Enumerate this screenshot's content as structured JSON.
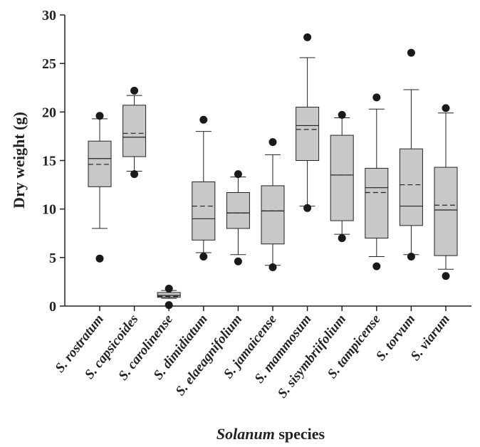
{
  "chart_data": {
    "type": "box",
    "xlabel_prefix": "Solanum",
    "xlabel_suffix": " species",
    "ylabel": "Dry weight (g)",
    "ylim": [
      0,
      30
    ],
    "yticks": [
      0,
      5,
      10,
      15,
      20,
      25,
      30
    ],
    "categories": [
      "S. rostratum",
      "S. capsicoides",
      "S. carolinense",
      "S. dimidiatum",
      "S. elaeagnifolium",
      "S. jamaicense",
      "S. mammosum",
      "S. sisymbriifolium",
      "S. tampicense",
      "S. torvum",
      "S. viarum"
    ],
    "boxes": [
      {
        "whisker_low": 8.0,
        "q1": 12.3,
        "median": 15.2,
        "mean": 14.6,
        "q3": 17.0,
        "whisker_high": 19.3,
        "outliers": [
          4.9,
          19.6
        ]
      },
      {
        "whisker_low": 13.9,
        "q1": 15.4,
        "median": 17.4,
        "mean": 17.8,
        "q3": 20.7,
        "whisker_high": 21.7,
        "outliers": [
          13.6,
          22.2
        ]
      },
      {
        "whisker_low": 0.8,
        "q1": 0.9,
        "median": 1.1,
        "mean": 1.0,
        "q3": 1.4,
        "whisker_high": 1.6,
        "outliers": [
          0.1,
          1.8
        ]
      },
      {
        "whisker_low": 5.5,
        "q1": 6.8,
        "median": 9.0,
        "mean": 10.3,
        "q3": 12.8,
        "whisker_high": 18.0,
        "outliers": [
          5.1,
          19.2
        ]
      },
      {
        "whisker_low": 5.3,
        "q1": 8.0,
        "median": 9.6,
        "mean": 9.6,
        "q3": 11.7,
        "whisker_high": 13.3,
        "outliers": [
          4.6,
          13.6
        ]
      },
      {
        "whisker_low": 4.2,
        "q1": 6.4,
        "median": 9.8,
        "mean": 9.8,
        "q3": 12.4,
        "whisker_high": 15.6,
        "outliers": [
          4.0,
          16.9
        ]
      },
      {
        "whisker_low": 10.3,
        "q1": 15.0,
        "median": 18.6,
        "mean": 18.2,
        "q3": 20.5,
        "whisker_high": 25.6,
        "outliers": [
          10.1,
          27.7
        ]
      },
      {
        "whisker_low": 7.4,
        "q1": 8.8,
        "median": 13.5,
        "mean": 13.5,
        "q3": 17.6,
        "whisker_high": 19.4,
        "outliers": [
          7.0,
          19.7
        ]
      },
      {
        "whisker_low": 5.1,
        "q1": 7.0,
        "median": 12.2,
        "mean": 11.7,
        "q3": 14.2,
        "whisker_high": 20.3,
        "outliers": [
          4.1,
          21.5
        ]
      },
      {
        "whisker_low": 5.3,
        "q1": 8.3,
        "median": 10.3,
        "mean": 12.5,
        "q3": 16.2,
        "whisker_high": 22.3,
        "outliers": [
          5.1,
          26.1
        ]
      },
      {
        "whisker_low": 3.8,
        "q1": 5.2,
        "median": 9.9,
        "mean": 10.4,
        "q3": 14.3,
        "whisker_high": 19.9,
        "outliers": [
          3.1,
          20.4
        ]
      }
    ],
    "colors": {
      "box_fill": "#c8c8c8",
      "stroke": "#222222",
      "outlier": "#1a1a1a"
    }
  }
}
